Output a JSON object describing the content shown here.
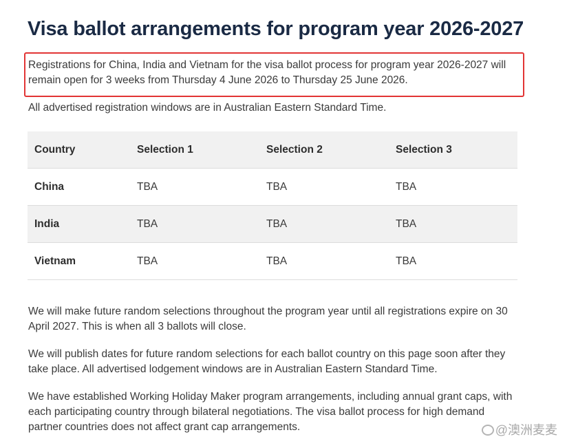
{
  "page": {
    "title": "Visa ballot arrangements for program year 2026-2027",
    "intro": "Registrations for China, India and Vietnam for the visa ballot process for program year 2026-2027 will remain open for 3 weeks from Thursday 4 June 2026 to Thursday 25 June 2026.",
    "timezone_note": "All advertised registration windows are in Australian Eastern Standard Time.",
    "highlight_color": "#e23434"
  },
  "table": {
    "headers": [
      "Country",
      "Selection 1",
      "Selection 2",
      "Selection 3"
    ],
    "rows": [
      {
        "country": "China",
        "values": [
          "TBA",
          "TBA",
          "TBA"
        ]
      },
      {
        "country": "India",
        "values": [
          "TBA",
          "TBA",
          "TBA"
        ]
      },
      {
        "country": "Vietnam",
        "values": [
          "TBA",
          "TBA",
          "TBA"
        ]
      }
    ]
  },
  "paragraphs": [
    "We will make future random selections throughout the program year until all registrations expire on 30 April 2027. This is when all 3 ballots will close.",
    "We will publish dates for future random selections for each ballot country on this page soon after they take place. All advertised lodgement windows are in Australian Eastern Standard Time.",
    "We have established Working Holiday Maker program arrangements, including annual grant caps, with each participating country through bilateral negotiations. The visa ballot process for high demand partner countries does not affect grant cap arrangements."
  ],
  "watermark": {
    "text": "@澳洲麦麦",
    "icon": "watermark-logo-icon"
  }
}
